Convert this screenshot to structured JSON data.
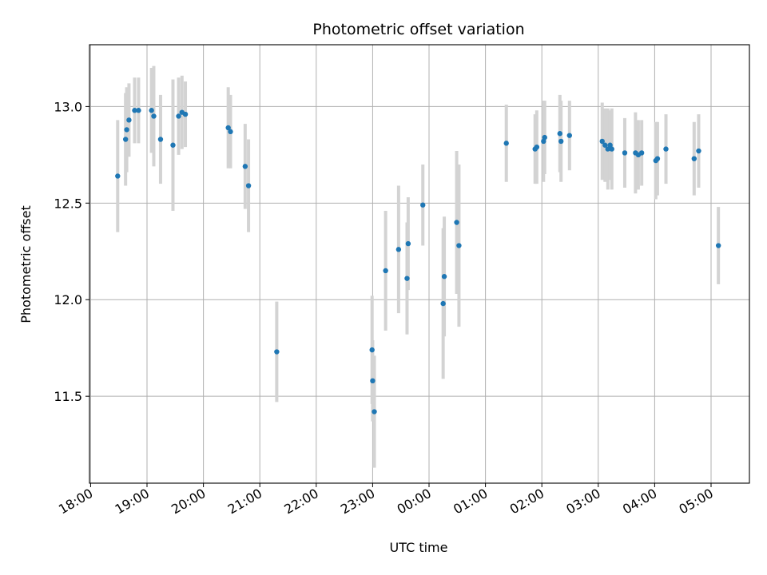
{
  "chart_data": {
    "type": "scatter",
    "title": "Photometric offset variation",
    "xlabel": "UTC time",
    "ylabel": "Photometric offset",
    "x_unit": "hours after 18:00 UTC (wraps past midnight)",
    "xlim": [
      -0.02,
      11.68
    ],
    "ylim": [
      11.05,
      13.32
    ],
    "grid": true,
    "x_ticks": [
      {
        "label": "18:00",
        "value": 0
      },
      {
        "label": "19:00",
        "value": 1
      },
      {
        "label": "20:00",
        "value": 2
      },
      {
        "label": "21:00",
        "value": 3
      },
      {
        "label": "22:00",
        "value": 4
      },
      {
        "label": "23:00",
        "value": 5
      },
      {
        "label": "00:00",
        "value": 6
      },
      {
        "label": "01:00",
        "value": 7
      },
      {
        "label": "02:00",
        "value": 8
      },
      {
        "label": "03:00",
        "value": 9
      },
      {
        "label": "04:00",
        "value": 10
      },
      {
        "label": "05:00",
        "value": 11
      }
    ],
    "y_ticks": [
      {
        "label": "11.5",
        "value": 11.5
      },
      {
        "label": "12.0",
        "value": 12.0
      },
      {
        "label": "12.5",
        "value": 12.5
      },
      {
        "label": "13.0",
        "value": 13.0
      }
    ],
    "colors": {
      "point": "#1f77b4",
      "errorbar": "#d3d3d3",
      "grid": "#b0b0b0"
    },
    "series": [
      {
        "x": [
          0.48,
          0.62,
          0.64,
          0.68,
          0.78,
          0.85,
          1.08,
          1.12,
          1.24,
          1.46,
          1.56,
          1.62,
          1.68,
          2.44,
          2.48,
          2.74,
          2.8,
          3.3,
          4.99,
          5.0,
          5.03,
          5.23,
          5.46,
          5.61,
          5.63,
          5.89,
          6.25,
          6.27,
          6.49,
          6.53,
          7.37,
          7.88,
          7.91,
          8.03,
          8.05,
          8.32,
          8.34,
          8.49,
          9.07,
          9.12,
          9.17,
          9.21,
          9.24,
          9.47,
          9.66,
          9.71,
          9.77,
          10.02,
          10.05,
          10.2,
          10.7,
          10.78,
          11.13
        ],
        "y": [
          12.64,
          12.83,
          12.88,
          12.93,
          12.98,
          12.98,
          12.98,
          12.95,
          12.83,
          12.8,
          12.95,
          12.97,
          12.96,
          12.89,
          12.87,
          12.69,
          12.59,
          11.73,
          11.74,
          11.58,
          11.42,
          12.15,
          12.26,
          12.11,
          12.29,
          12.49,
          11.98,
          12.12,
          12.4,
          12.28,
          12.81,
          12.78,
          12.79,
          12.82,
          12.84,
          12.86,
          12.82,
          12.85,
          12.82,
          12.8,
          12.78,
          12.8,
          12.78,
          12.76,
          12.76,
          12.75,
          12.76,
          12.72,
          12.73,
          12.78,
          12.73,
          12.77,
          12.28
        ],
        "err": [
          0.29,
          0.24,
          0.22,
          0.19,
          0.17,
          0.17,
          0.22,
          0.26,
          0.23,
          0.34,
          0.2,
          0.19,
          0.17,
          0.21,
          0.19,
          0.22,
          0.24,
          0.26,
          0.28,
          0.21,
          0.29,
          0.31,
          0.33,
          0.29,
          0.24,
          0.21,
          0.39,
          0.31,
          0.37,
          0.42,
          0.2,
          0.18,
          0.19,
          0.21,
          0.19,
          0.2,
          0.21,
          0.18,
          0.2,
          0.19,
          0.21,
          0.18,
          0.21,
          0.18,
          0.21,
          0.18,
          0.17,
          0.2,
          0.19,
          0.18,
          0.19,
          0.19,
          0.2
        ]
      }
    ]
  }
}
